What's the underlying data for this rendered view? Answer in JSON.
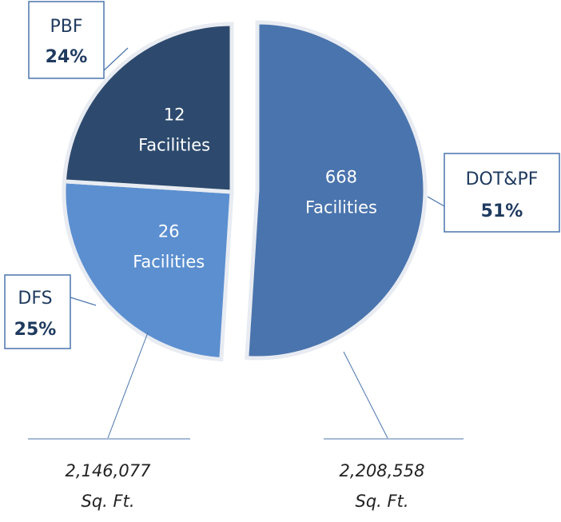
{
  "chart_data": {
    "type": "pie",
    "categories": [
      "DOT&PF",
      "DFS",
      "PBF"
    ],
    "values": [
      51,
      25,
      24
    ],
    "value_labels": [
      "51%",
      "25%",
      "24%"
    ],
    "colors": [
      "#4a74ad",
      "#5b8fd0",
      "#2d4a6e"
    ],
    "facility_counts": [
      668,
      26,
      12
    ],
    "facility_label": "Facilities",
    "area_labels": [
      {
        "text": "2,146,077",
        "unit": "Sq. Ft."
      },
      {
        "text": "2,208,558",
        "unit": "Sq. Ft."
      }
    ]
  }
}
